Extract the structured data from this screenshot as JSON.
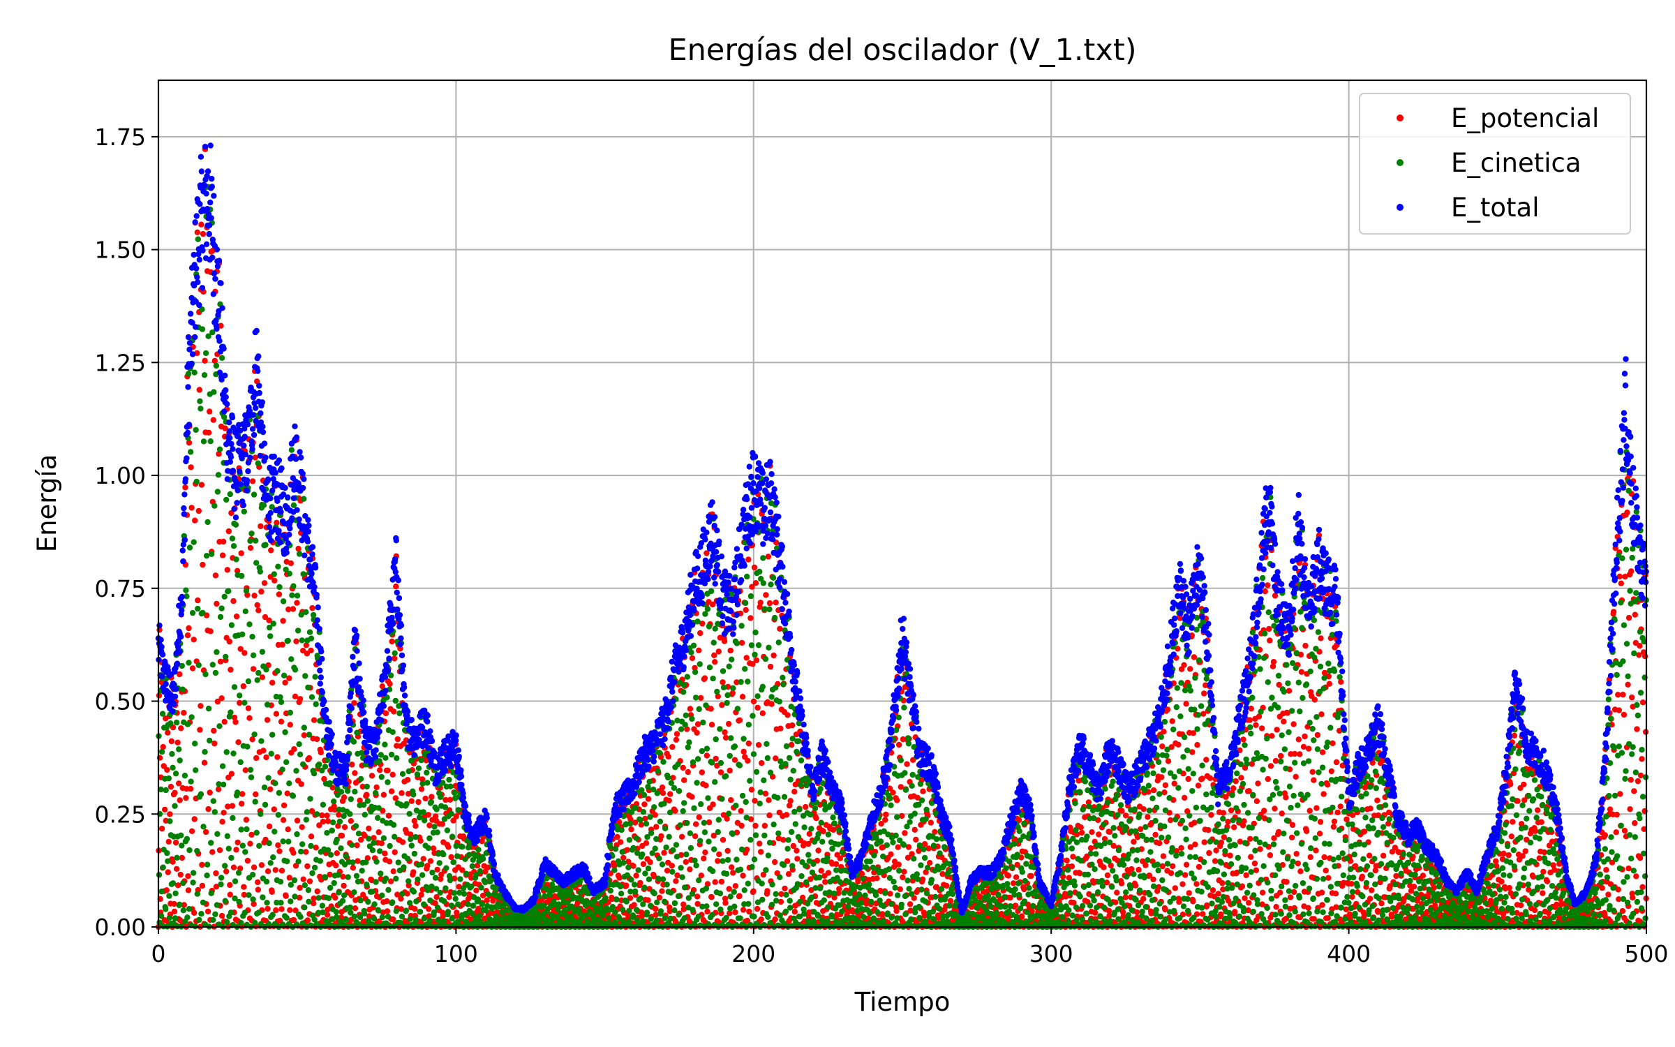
{
  "chart_data": {
    "type": "scatter",
    "title": "Energías del oscilador (V_1.txt)",
    "xlabel": "Tiempo",
    "ylabel": "Energía",
    "xlim": [
      0,
      500
    ],
    "ylim": [
      0,
      1.875
    ],
    "x_ticks": [
      0,
      100,
      200,
      300,
      400,
      500
    ],
    "y_ticks": [
      0.0,
      0.25,
      0.5,
      0.75,
      1.0,
      1.25,
      1.5,
      1.75
    ],
    "x_tick_labels": [
      "0",
      "100",
      "200",
      "300",
      "400",
      "500"
    ],
    "y_tick_labels": [
      "0.00",
      "0.25",
      "0.50",
      "0.75",
      "1.00",
      "1.25",
      "1.50",
      "1.75"
    ],
    "grid": true,
    "legend_position": "top-right",
    "series": [
      {
        "name": "E_potencial",
        "color": "#ff0000",
        "marker": "dot"
      },
      {
        "name": "E_cinetica",
        "color": "#008000",
        "marker": "dot"
      },
      {
        "name": "E_total",
        "color": "#0000ff",
        "marker": "dot"
      }
    ],
    "total_energy_envelope": {
      "x": [
        0,
        2,
        5,
        8,
        10,
        13,
        15,
        17,
        20,
        23,
        26,
        30,
        33,
        36,
        40,
        43,
        46,
        50,
        53,
        56,
        60,
        63,
        66,
        70,
        73,
        76,
        80,
        83,
        86,
        90,
        93,
        96,
        100,
        103,
        106,
        110,
        113,
        116,
        120,
        123,
        126,
        130,
        133,
        136,
        140,
        143,
        146,
        150,
        153,
        156,
        160,
        163,
        166,
        170,
        173,
        176,
        180,
        183,
        186,
        190,
        193,
        196,
        200,
        203,
        206,
        210,
        213,
        216,
        220,
        223,
        226,
        230,
        233,
        236,
        240,
        243,
        246,
        250,
        253,
        256,
        260,
        263,
        266,
        270,
        273,
        276,
        280,
        283,
        286,
        290,
        293,
        296,
        300,
        303,
        306,
        310,
        313,
        316,
        320,
        323,
        326,
        330,
        333,
        336,
        340,
        343,
        346,
        350,
        353,
        356,
        360,
        363,
        366,
        370,
        373,
        376,
        380,
        383,
        386,
        390,
        393,
        396,
        400,
        403,
        406,
        410,
        413,
        416,
        420,
        423,
        426,
        430,
        433,
        436,
        440,
        443,
        446,
        450,
        453,
        456,
        460,
        463,
        466,
        470,
        473,
        476,
        480,
        483,
        486,
        490,
        493,
        496,
        500
      ],
      "y": [
        0.62,
        0.55,
        0.5,
        0.75,
        1.2,
        1.5,
        1.58,
        1.62,
        1.4,
        1.1,
        1.0,
        1.05,
        1.25,
        0.95,
        0.95,
        0.9,
        1.05,
        0.85,
        0.72,
        0.45,
        0.35,
        0.35,
        0.62,
        0.4,
        0.4,
        0.55,
        0.8,
        0.45,
        0.42,
        0.45,
        0.35,
        0.38,
        0.4,
        0.25,
        0.2,
        0.24,
        0.12,
        0.08,
        0.04,
        0.04,
        0.06,
        0.14,
        0.12,
        0.1,
        0.12,
        0.13,
        0.08,
        0.1,
        0.26,
        0.28,
        0.32,
        0.38,
        0.4,
        0.45,
        0.55,
        0.62,
        0.75,
        0.8,
        0.88,
        0.72,
        0.7,
        0.85,
        0.98,
        0.92,
        0.95,
        0.75,
        0.6,
        0.45,
        0.3,
        0.38,
        0.32,
        0.25,
        0.12,
        0.15,
        0.25,
        0.3,
        0.4,
        0.65,
        0.5,
        0.38,
        0.35,
        0.25,
        0.2,
        0.03,
        0.1,
        0.12,
        0.12,
        0.15,
        0.22,
        0.3,
        0.25,
        0.1,
        0.05,
        0.15,
        0.3,
        0.4,
        0.35,
        0.3,
        0.4,
        0.35,
        0.3,
        0.35,
        0.4,
        0.45,
        0.6,
        0.78,
        0.65,
        0.8,
        0.6,
        0.3,
        0.35,
        0.45,
        0.55,
        0.75,
        0.95,
        0.72,
        0.65,
        0.9,
        0.7,
        0.8,
        0.75,
        0.72,
        0.28,
        0.35,
        0.38,
        0.45,
        0.35,
        0.25,
        0.2,
        0.22,
        0.18,
        0.15,
        0.1,
        0.08,
        0.12,
        0.08,
        0.15,
        0.22,
        0.35,
        0.55,
        0.4,
        0.38,
        0.35,
        0.25,
        0.12,
        0.05,
        0.08,
        0.15,
        0.35,
        0.85,
        1.15,
        0.9,
        0.75
      ]
    }
  }
}
